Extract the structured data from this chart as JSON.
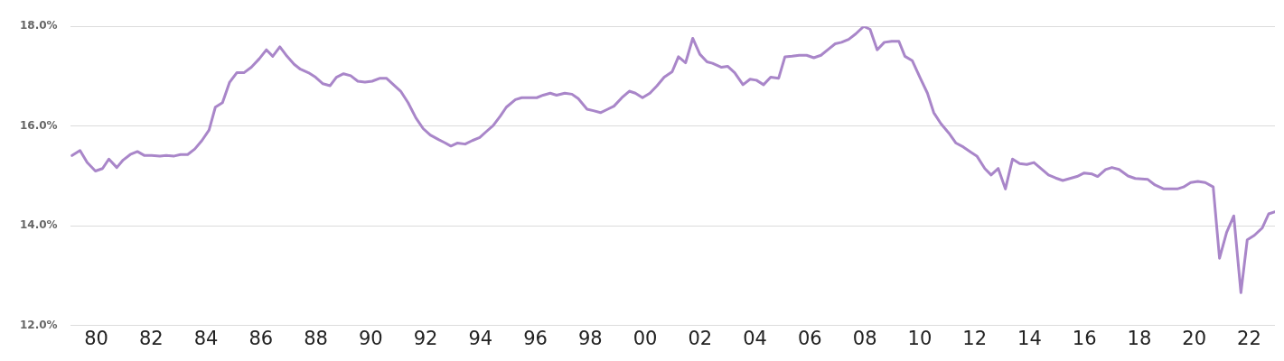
{
  "chart_data": {
    "type": "line",
    "x": [
      1979.12,
      1979.41,
      1979.67,
      1979.97,
      1980.23,
      1980.46,
      1980.75,
      1980.98,
      1981.24,
      1981.5,
      1981.76,
      1982.02,
      1982.32,
      1982.55,
      1982.84,
      1983.07,
      1983.33,
      1983.59,
      1983.85,
      1984.11,
      1984.34,
      1984.6,
      1984.86,
      1985.12,
      1985.38,
      1985.65,
      1985.94,
      1986.2,
      1986.43,
      1986.69,
      1986.95,
      1987.21,
      1987.44,
      1987.73,
      1987.99,
      1988.26,
      1988.52,
      1988.75,
      1989.01,
      1989.27,
      1989.53,
      1989.79,
      1990.05,
      1990.34,
      1990.57,
      1990.83,
      1991.09,
      1991.36,
      1991.65,
      1991.91,
      1992.17,
      1992.47,
      1992.69,
      1992.92,
      1993.15,
      1993.44,
      1993.7,
      1993.97,
      1994.23,
      1994.46,
      1994.72,
      1994.94,
      1995.27,
      1995.5,
      1995.76,
      1996.05,
      1996.28,
      1996.54,
      1996.77,
      1997.07,
      1997.33,
      1997.56,
      1997.88,
      1998.11,
      1998.37,
      1998.6,
      1998.86,
      1999.15,
      1999.42,
      1999.64,
      1999.9,
      2000.17,
      2000.43,
      2000.69,
      2000.98,
      2001.21,
      2001.47,
      2001.73,
      2001.99,
      2002.25,
      2002.45,
      2002.78,
      2003.0,
      2003.26,
      2003.56,
      2003.82,
      2004.05,
      2004.31,
      2004.57,
      2004.86,
      2005.09,
      2005.35,
      2005.61,
      2005.88,
      2006.14,
      2006.4,
      2006.69,
      2006.92,
      2007.15,
      2007.41,
      2007.67,
      2007.96,
      2008.19,
      2008.45,
      2008.71,
      2008.98,
      2009.24,
      2009.46,
      2009.73,
      2010.02,
      2010.28,
      2010.51,
      2010.77,
      2011.06,
      2011.32,
      2011.59,
      2011.88,
      2012.08,
      2012.37,
      2012.6,
      2012.86,
      2013.12,
      2013.38,
      2013.64,
      2013.9,
      2014.16,
      2014.46,
      2014.69,
      2014.95,
      2015.21,
      2015.47,
      2015.73,
      2015.99,
      2016.28,
      2016.48,
      2016.77,
      2017.0,
      2017.26,
      2017.59,
      2017.85,
      2018.08,
      2018.31,
      2018.57,
      2018.89,
      2019.12,
      2019.38,
      2019.61,
      2019.87,
      2020.13,
      2020.4,
      2020.69,
      2020.92,
      2021.18,
      2021.44,
      2021.7,
      2021.93,
      2022.19,
      2022.48,
      2022.71,
      2022.94
    ],
    "series": [
      {
        "color": "#a986c9",
        "values": [
          15.41,
          15.51,
          15.27,
          15.1,
          15.15,
          15.34,
          15.17,
          15.32,
          15.43,
          15.49,
          15.41,
          15.41,
          15.4,
          15.41,
          15.4,
          15.43,
          15.43,
          15.54,
          15.71,
          15.92,
          16.38,
          16.47,
          16.88,
          17.07,
          17.07,
          17.18,
          17.35,
          17.53,
          17.4,
          17.59,
          17.4,
          17.24,
          17.14,
          17.07,
          16.98,
          16.85,
          16.81,
          16.98,
          17.05,
          17.01,
          16.9,
          16.88,
          16.9,
          16.96,
          16.96,
          16.83,
          16.7,
          16.47,
          16.16,
          15.95,
          15.82,
          15.73,
          15.67,
          15.6,
          15.66,
          15.64,
          15.71,
          15.77,
          15.9,
          16.01,
          16.2,
          16.38,
          16.53,
          16.57,
          16.57,
          16.57,
          16.62,
          16.66,
          16.62,
          16.66,
          16.64,
          16.55,
          16.34,
          16.31,
          16.27,
          16.33,
          16.4,
          16.57,
          16.7,
          16.66,
          16.57,
          16.66,
          16.81,
          16.98,
          17.09,
          17.39,
          17.27,
          17.76,
          17.44,
          17.29,
          17.26,
          17.18,
          17.2,
          17.07,
          16.83,
          16.94,
          16.92,
          16.83,
          16.98,
          16.96,
          17.39,
          17.4,
          17.42,
          17.42,
          17.37,
          17.42,
          17.55,
          17.65,
          17.68,
          17.74,
          17.85,
          18.0,
          17.94,
          17.53,
          17.68,
          17.7,
          17.7,
          17.4,
          17.31,
          16.96,
          16.66,
          16.27,
          16.05,
          15.86,
          15.66,
          15.58,
          15.47,
          15.4,
          15.15,
          15.02,
          15.15,
          14.74,
          15.34,
          15.25,
          15.23,
          15.27,
          15.13,
          15.02,
          14.96,
          14.91,
          14.95,
          14.99,
          15.06,
          15.04,
          14.99,
          15.13,
          15.17,
          15.13,
          15.0,
          14.95,
          14.94,
          14.93,
          14.82,
          14.74,
          14.74,
          14.74,
          14.78,
          14.87,
          14.89,
          14.87,
          14.78,
          13.35,
          13.87,
          14.2,
          12.66,
          13.72,
          13.81,
          13.96,
          14.24,
          14.28
        ]
      }
    ],
    "xlim": [
      1979.05,
      2022.94
    ],
    "xticks": [
      {
        "value": 1980,
        "label": "80"
      },
      {
        "value": 1982,
        "label": "82"
      },
      {
        "value": 1984,
        "label": "84"
      },
      {
        "value": 1986,
        "label": "86"
      },
      {
        "value": 1988,
        "label": "88"
      },
      {
        "value": 1990,
        "label": "90"
      },
      {
        "value": 1992,
        "label": "92"
      },
      {
        "value": 1994,
        "label": "94"
      },
      {
        "value": 1996,
        "label": "96"
      },
      {
        "value": 1998,
        "label": "98"
      },
      {
        "value": 2000,
        "label": "00"
      },
      {
        "value": 2002,
        "label": "02"
      },
      {
        "value": 2004,
        "label": "04"
      },
      {
        "value": 2006,
        "label": "06"
      },
      {
        "value": 2008,
        "label": "08"
      },
      {
        "value": 2010,
        "label": "10"
      },
      {
        "value": 2012,
        "label": "12"
      },
      {
        "value": 2014,
        "label": "14"
      },
      {
        "value": 2016,
        "label": "16"
      },
      {
        "value": 2018,
        "label": "18"
      },
      {
        "value": 2020,
        "label": "20"
      },
      {
        "value": 2022,
        "label": "22"
      }
    ],
    "ylim": [
      12,
      18
    ],
    "yticks": [
      {
        "value": 12,
        "label": "12.0%"
      },
      {
        "value": 14,
        "label": "14.0%"
      },
      {
        "value": 16,
        "label": "16.0%"
      },
      {
        "value": 18,
        "label": "18.0%"
      }
    ],
    "grid": "y",
    "marker": "none",
    "line_style": "solid"
  }
}
